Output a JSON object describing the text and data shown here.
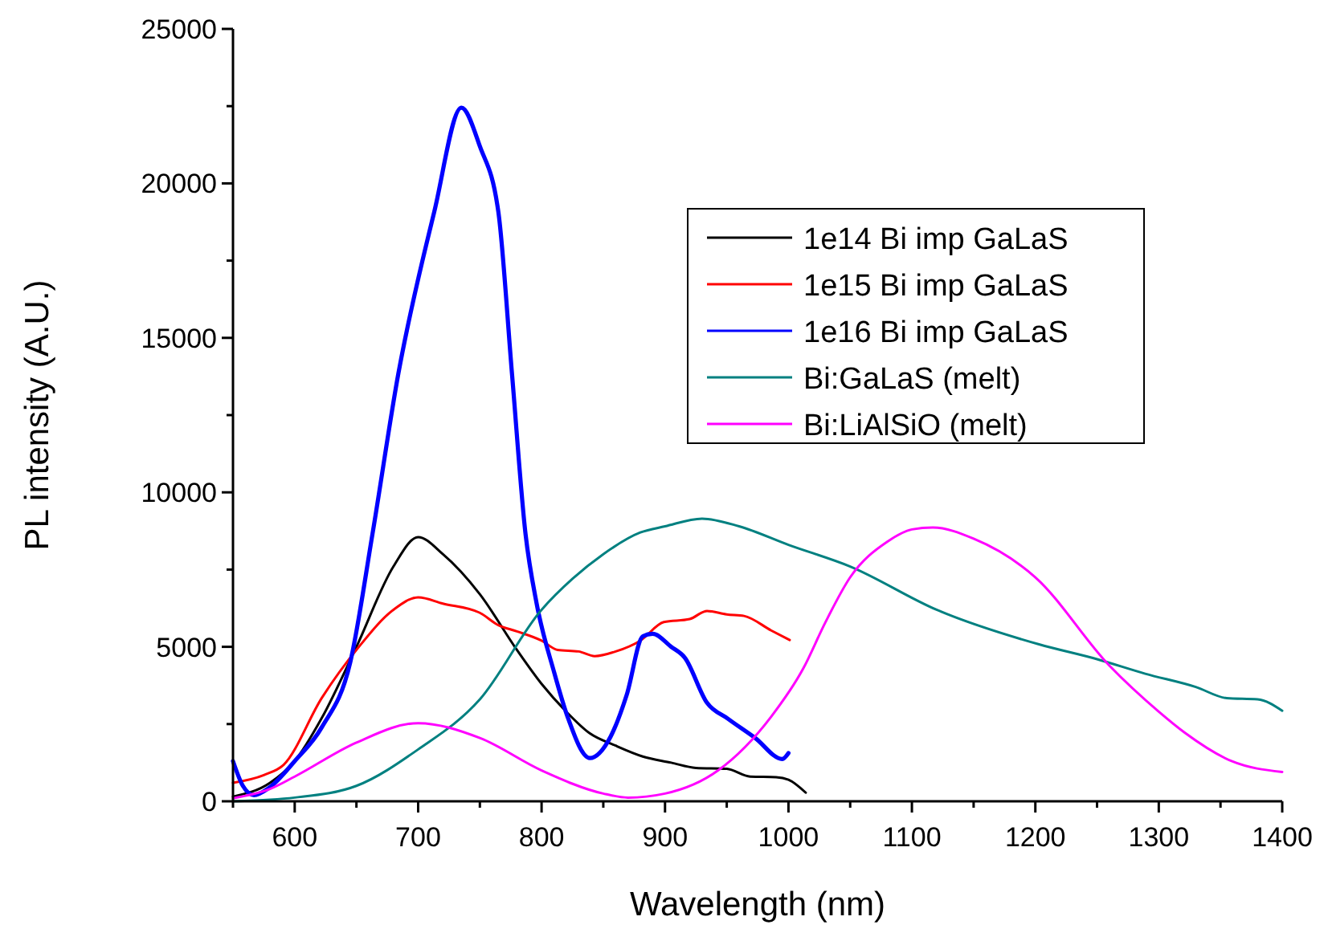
{
  "chart_data": {
    "type": "line",
    "xlabel": "Wavelength (nm)",
    "ylabel": "PL intensity (A.U.)",
    "xlim": [
      550,
      1400
    ],
    "ylim": [
      0,
      25000
    ],
    "xticks": [
      {
        "value": 550,
        "label": null
      },
      600,
      {
        "value": 650,
        "label": null
      },
      700,
      {
        "value": 750,
        "label": null
      },
      800,
      {
        "value": 850,
        "label": null
      },
      900,
      {
        "value": 950,
        "label": null
      },
      1000,
      {
        "value": 1050,
        "label": null
      },
      1100,
      {
        "value": 1150,
        "label": null
      },
      1200,
      {
        "value": 1250,
        "label": null
      },
      1300,
      {
        "value": 1350,
        "label": null
      },
      1400
    ],
    "yticks": [
      0,
      {
        "value": 2500,
        "label": null
      },
      5000,
      {
        "value": 7500,
        "label": null
      },
      10000,
      {
        "value": 12500,
        "label": null
      },
      15000,
      {
        "value": 17500,
        "label": null
      },
      20000,
      {
        "value": 22500,
        "label": null
      },
      25000
    ],
    "grid": false,
    "legend": "top right",
    "marker": "none",
    "line_style": "solid",
    "series": [
      {
        "name": "1e14 Bi imp GaLaS",
        "color": "#000000",
        "x": [
          550,
          580,
          600,
          622,
          650,
          680,
          700,
          720,
          750,
          780,
          800,
          820,
          839,
          860,
          882,
          905,
          925,
          950,
          969,
          990,
          1000,
          1014
        ],
        "values": [
          150,
          600,
          1300,
          2700,
          5000,
          7600,
          8550,
          8000,
          6700,
          4900,
          3800,
          2900,
          2200,
          1800,
          1450,
          1250,
          1080,
          1050,
          800,
          780,
          700,
          280
        ]
      },
      {
        "name": "1e15 Bi imp GaLaS",
        "color": "#ff0000",
        "x": [
          550,
          575,
          591,
          622,
          652,
          680,
          700,
          720,
          750,
          765,
          780,
          800,
          813,
          830,
          843,
          860,
          880,
          899,
          920,
          934,
          950,
          964,
          986,
          1001
        ],
        "values": [
          600,
          850,
          1180,
          3350,
          5000,
          6200,
          6600,
          6400,
          6100,
          5700,
          5500,
          5200,
          4900,
          4850,
          4700,
          4850,
          5200,
          5800,
          5900,
          6160,
          6050,
          6000,
          5530,
          5220
        ]
      },
      {
        "name": "1e16 Bi imp GaLaS",
        "color": "#0000ff",
        "x": [
          550,
          558,
          567,
          579,
          600,
          622,
          645,
          663,
          684,
          713,
          735,
          750,
          765,
          776,
          787,
          796,
          810,
          821,
          839,
          856,
          869,
          882,
          890,
          905,
          916,
          934,
          951,
          973,
          995,
          1000
        ],
        "values": [
          1300,
          500,
          200,
          430,
          1300,
          2400,
          4500,
          8650,
          13850,
          19070,
          22450,
          21200,
          19070,
          13850,
          8650,
          6400,
          4200,
          2740,
          1400,
          2100,
          3450,
          5340,
          5420,
          5000,
          4650,
          3190,
          2670,
          2050,
          1370,
          1560
        ]
      },
      {
        "name": "Bi:GaLaS (melt)",
        "color": "#008080",
        "x": [
          550,
          580,
          600,
          650,
          700,
          750,
          800,
          825,
          850,
          880,
          900,
          930,
          960,
          1000,
          1050,
          1120,
          1203,
          1250,
          1289,
          1330,
          1355,
          1380,
          1400
        ],
        "values": [
          0,
          50,
          120,
          500,
          1680,
          3300,
          6200,
          7200,
          8000,
          8700,
          8900,
          9150,
          8900,
          8300,
          7600,
          6200,
          5080,
          4600,
          4130,
          3700,
          3340,
          3300,
          2930
        ]
      },
      {
        "name": "Bi:LiAlSiO (melt)",
        "color": "#ff00ff",
        "x": [
          550,
          580,
          600,
          650,
          700,
          750,
          800,
          850,
          870,
          900,
          943,
          986,
          1012,
          1030,
          1050,
          1080,
          1100,
          1117,
          1150,
          1200,
          1260,
          1300,
          1321,
          1359,
          1400
        ],
        "values": [
          100,
          400,
          800,
          1900,
          2530,
          2050,
          1000,
          250,
          120,
          250,
          1000,
          2740,
          4300,
          5800,
          7250,
          8400,
          8800,
          8860,
          8500,
          7250,
          4390,
          2900,
          2220,
          1300,
          950
        ]
      }
    ]
  }
}
